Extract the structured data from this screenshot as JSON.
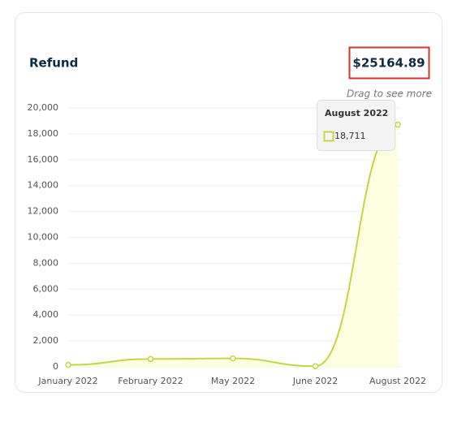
{
  "header": {
    "title": "Refund",
    "total": "$25164.89",
    "hint": "Drag to see more"
  },
  "chart_data": {
    "type": "area",
    "categories": [
      "January 2022",
      "February 2022",
      "May 2022",
      "June 2022",
      "August 2022"
    ],
    "series": [
      {
        "color": "#c5d545",
        "values": [
          150,
          600,
          650,
          50,
          18711
        ],
        "value_labels": [
          null,
          null,
          null,
          null,
          "18,711"
        ]
      }
    ],
    "ylim": [
      0,
      20000
    ],
    "yticks": [
      0,
      {
        "value": 2000,
        "label": "2,000"
      },
      {
        "value": 4000,
        "label": "4,000"
      },
      {
        "value": 6000,
        "label": "6,000"
      },
      {
        "value": 8000,
        "label": "8,000"
      },
      {
        "value": 10000,
        "label": "10,000"
      },
      {
        "value": 12000,
        "label": "12,000"
      },
      {
        "value": 14000,
        "label": "14,000"
      },
      {
        "value": 16000,
        "label": "16,000"
      },
      {
        "value": 18000,
        "label": "18,000"
      },
      {
        "value": 20000,
        "label": "20,000"
      }
    ],
    "grid": true
  }
}
